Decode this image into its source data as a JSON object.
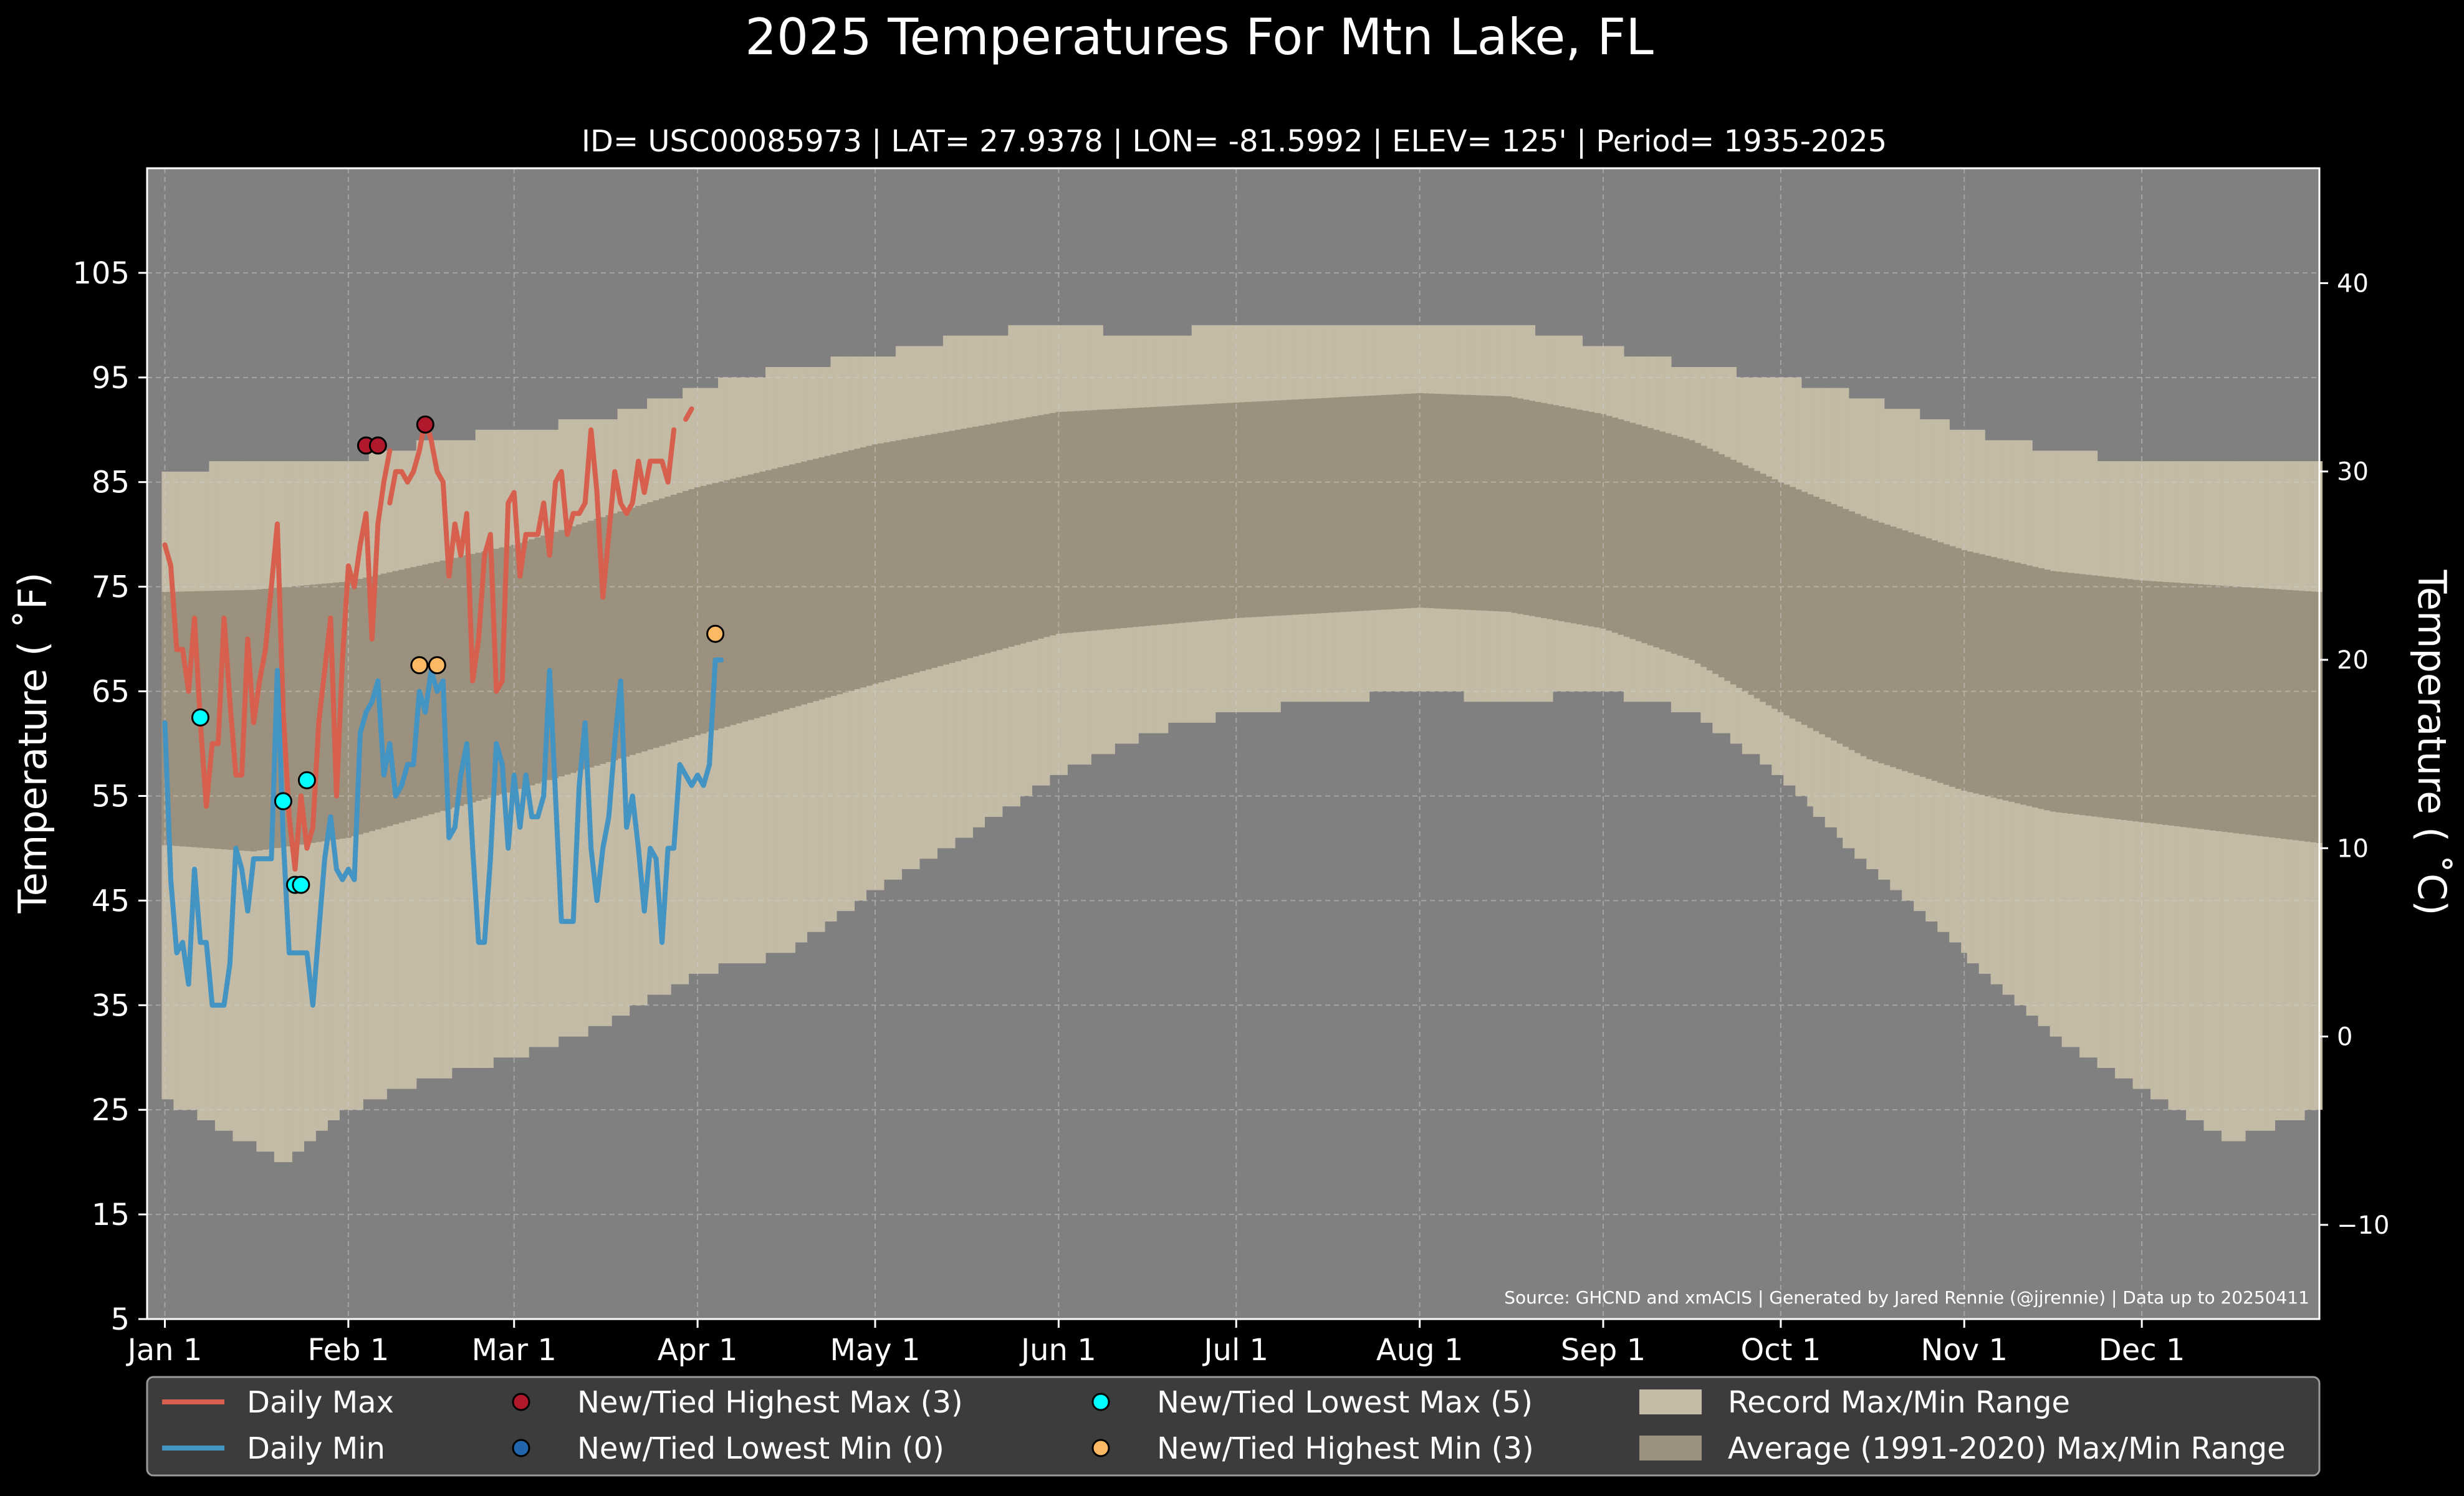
{
  "chart_data": {
    "type": "area",
    "title": "2025 Temperatures For Mtn Lake, FL",
    "subtitle": "ID= USC00085973 | LAT= 27.9378 | LON= -81.5992 | ELEV= 125' | Period= 1935-2025",
    "ylabel": "Temperature ($^\\circ$F)",
    "ylabel_display": "Temperature ( ˚F)",
    "y2label_display": "Temperature ( ˚C)",
    "ylim": [
      5,
      115
    ],
    "y2lim": [
      -15,
      46.1
    ],
    "xlim_day": [
      -3,
      364
    ],
    "yticks": [
      5,
      15,
      25,
      35,
      45,
      55,
      65,
      75,
      85,
      95,
      105
    ],
    "y2ticks": [
      -10,
      0,
      10,
      20,
      30,
      40
    ],
    "y2tick_labels": [
      "−10",
      "0",
      "10",
      "20",
      "30",
      "40"
    ],
    "xticks": [
      {
        "day": 0,
        "label": "Jan 1"
      },
      {
        "day": 31,
        "label": "Feb 1"
      },
      {
        "day": 59,
        "label": "Mar 1"
      },
      {
        "day": 90,
        "label": "Apr 1"
      },
      {
        "day": 120,
        "label": "May 1"
      },
      {
        "day": 151,
        "label": "Jun 1"
      },
      {
        "day": 181,
        "label": "Jul 1"
      },
      {
        "day": 212,
        "label": "Aug 1"
      },
      {
        "day": 243,
        "label": "Sep 1"
      },
      {
        "day": 273,
        "label": "Oct 1"
      },
      {
        "day": 304,
        "label": "Nov 1"
      },
      {
        "day": 334,
        "label": "Dec 1"
      }
    ],
    "grid": true,
    "legend_position": "bottom",
    "source": "Source: GHCND and xmACIS | Generated by Jared Rennie (@jjrennie) | Data up to 20250411",
    "record_range": {
      "max_anchors": [
        [
          0,
          86
        ],
        [
          15,
          87
        ],
        [
          31,
          87
        ],
        [
          46,
          89
        ],
        [
          59,
          90
        ],
        [
          74,
          91
        ],
        [
          90,
          94
        ],
        [
          105,
          96
        ],
        [
          120,
          97
        ],
        [
          135,
          99
        ],
        [
          151,
          100
        ],
        [
          166,
          99
        ],
        [
          181,
          100
        ],
        [
          196,
          100
        ],
        [
          212,
          100
        ],
        [
          227,
          100
        ],
        [
          243,
          98
        ],
        [
          258,
          96
        ],
        [
          273,
          95
        ],
        [
          288,
          93
        ],
        [
          304,
          90
        ],
        [
          319,
          88
        ],
        [
          334,
          87
        ],
        [
          349,
          87
        ],
        [
          364,
          87
        ]
      ],
      "min_anchors": [
        [
          0,
          26
        ],
        [
          10,
          23
        ],
        [
          20,
          20
        ],
        [
          31,
          25
        ],
        [
          45,
          28
        ],
        [
          59,
          30
        ],
        [
          74,
          33
        ],
        [
          90,
          38
        ],
        [
          105,
          40
        ],
        [
          120,
          46
        ],
        [
          135,
          51
        ],
        [
          151,
          57
        ],
        [
          166,
          61
        ],
        [
          181,
          63
        ],
        [
          196,
          64
        ],
        [
          212,
          65
        ],
        [
          227,
          64
        ],
        [
          243,
          65
        ],
        [
          258,
          63
        ],
        [
          273,
          57
        ],
        [
          288,
          48
        ],
        [
          304,
          40
        ],
        [
          319,
          32
        ],
        [
          334,
          27
        ],
        [
          349,
          22
        ],
        [
          364,
          25
        ]
      ]
    },
    "average_range": {
      "max_anchors": [
        [
          0,
          74.5
        ],
        [
          15,
          74.7
        ],
        [
          31,
          75.5
        ],
        [
          59,
          79
        ],
        [
          90,
          84.5
        ],
        [
          120,
          88.6
        ],
        [
          151,
          91.7
        ],
        [
          181,
          92.6
        ],
        [
          212,
          93.5
        ],
        [
          227,
          93.2
        ],
        [
          243,
          91.5
        ],
        [
          258,
          89
        ],
        [
          273,
          85
        ],
        [
          288,
          81.5
        ],
        [
          304,
          78.5
        ],
        [
          319,
          76.5
        ],
        [
          334,
          75.6
        ],
        [
          364,
          74.5
        ]
      ],
      "min_anchors": [
        [
          0,
          50.3
        ],
        [
          15,
          49.7
        ],
        [
          31,
          51
        ],
        [
          59,
          55.5
        ],
        [
          90,
          60.8
        ],
        [
          120,
          65.7
        ],
        [
          151,
          70.5
        ],
        [
          181,
          72
        ],
        [
          212,
          73
        ],
        [
          227,
          72.6
        ],
        [
          243,
          71
        ],
        [
          258,
          68
        ],
        [
          273,
          63
        ],
        [
          288,
          58.5
        ],
        [
          304,
          55.5
        ],
        [
          319,
          53.5
        ],
        [
          334,
          52.5
        ],
        [
          364,
          50.5
        ]
      ]
    },
    "series": [
      {
        "name": "Daily Max",
        "color": "#d6604d",
        "segments": [
          {
            "start_day": 0,
            "values": [
              79,
              77,
              69,
              69,
              65,
              72,
              62,
              54,
              60,
              60,
              72,
              64,
              57,
              57,
              70,
              62,
              66,
              69,
              75,
              81,
              63,
              53,
              48,
              55,
              50,
              52,
              62,
              67,
              72,
              55,
              68,
              77,
              75,
              79,
              82,
              70,
              81,
              85,
              88
            ]
          },
          {
            "start_day": 38,
            "values": [
              83,
              86,
              86,
              85,
              86,
              88,
              91,
              89,
              86,
              85,
              76,
              81,
              78,
              82,
              66,
              70,
              78,
              80,
              65,
              66,
              83,
              84,
              76,
              80,
              80,
              80,
              83,
              78,
              85,
              86,
              80,
              82,
              82,
              83,
              90,
              84,
              74,
              80,
              86,
              83,
              82,
              83,
              87,
              84,
              87,
              87,
              87,
              85,
              90
            ]
          },
          {
            "start_day": 88,
            "values": [
              91,
              92
            ]
          }
        ]
      },
      {
        "name": "Daily Min",
        "color": "#4393c3",
        "segments": [
          {
            "start_day": 0,
            "values": [
              62,
              47,
              40,
              41,
              37,
              48,
              41,
              41,
              35,
              35,
              35,
              39,
              50,
              48,
              44,
              49,
              49,
              49,
              49,
              67,
              51,
              40,
              40,
              40,
              40,
              35,
              42,
              49,
              53,
              48,
              47,
              48,
              47,
              61,
              63,
              64,
              66,
              57,
              60,
              55,
              56,
              58,
              58,
              65,
              63,
              67,
              65,
              66,
              51,
              52,
              57,
              60,
              50,
              41,
              41,
              49,
              60,
              58,
              50,
              57,
              52,
              57,
              53,
              53,
              55,
              67,
              55,
              43,
              43,
              43,
              56,
              62,
              50,
              45,
              50,
              53,
              60,
              66,
              52,
              55,
              50,
              44,
              50,
              49,
              41,
              50,
              50,
              58,
              57,
              56,
              57,
              56,
              58,
              68,
              68
            ]
          }
        ]
      }
    ],
    "markers": [
      {
        "name": "New/Tied Highest Max (3)",
        "color": "#b2182b",
        "points": [
          [
            34,
            88.5
          ],
          [
            36,
            88.5
          ],
          [
            44,
            90.5
          ]
        ]
      },
      {
        "name": "New/Tied Lowest Min (0)",
        "color": "#2166ac",
        "points": []
      },
      {
        "name": "New/Tied Lowest Max (5)",
        "color": "#00ffff",
        "points": [
          [
            6,
            62.5
          ],
          [
            20,
            54.5
          ],
          [
            22,
            46.5
          ],
          [
            23,
            46.5
          ],
          [
            24,
            56.5
          ]
        ]
      },
      {
        "name": "New/Tied Highest Min (3)",
        "color": "#fdb863",
        "points": [
          [
            43,
            67.5
          ],
          [
            46,
            67.5
          ],
          [
            93,
            70.5
          ]
        ]
      }
    ],
    "legend": [
      {
        "label": "Daily Max",
        "kind": "line",
        "color": "#d6604d"
      },
      {
        "label": "Daily Min",
        "kind": "line",
        "color": "#4393c3"
      },
      {
        "label": "New/Tied Highest Max (3)",
        "kind": "dot",
        "color": "#b2182b"
      },
      {
        "label": "New/Tied Lowest Min (0)",
        "kind": "dot",
        "color": "#2166ac"
      },
      {
        "label": "New/Tied Lowest Max (5)",
        "kind": "dot",
        "color": "#00ffff"
      },
      {
        "label": "New/Tied Highest Min (3)",
        "kind": "dot",
        "color": "#fdb863"
      },
      {
        "label": "Record Max/Min Range",
        "kind": "patch",
        "color": "#c3bba5"
      },
      {
        "label": "Average (1991-2020) Max/Min Range",
        "kind": "patch",
        "color": "#9b917e"
      }
    ],
    "colors": {
      "background": "#000000",
      "plot_background": "#808080",
      "record": "#c3bba5",
      "average": "#9b917e"
    }
  }
}
